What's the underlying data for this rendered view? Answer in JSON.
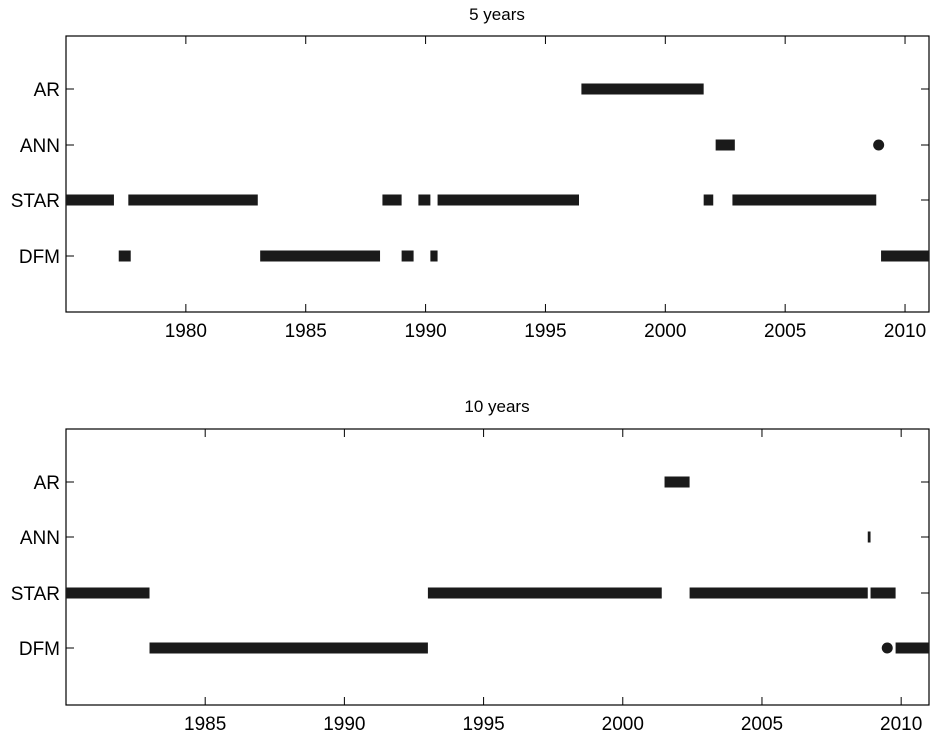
{
  "chart_data": [
    {
      "type": "scatter",
      "title": "5 years",
      "xlabel": "",
      "ylabel": "",
      "xlim": [
        1975,
        2011
      ],
      "categories": [
        "AR",
        "ANN",
        "STAR",
        "DFM"
      ],
      "xticks": [
        "1980",
        "1985",
        "1990",
        "1995",
        "2000",
        "2005",
        "2010"
      ],
      "grid": false,
      "series": [
        {
          "category": "AR",
          "segments": [
            [
              1996.5,
              2001.6
            ]
          ]
        },
        {
          "category": "ANN",
          "segments": [
            [
              2002.1,
              2002.9
            ],
            [
              2008.9,
              2008.9
            ]
          ]
        },
        {
          "category": "STAR",
          "segments": [
            [
              1975.0,
              1977.0
            ],
            [
              1977.6,
              1983.0
            ],
            [
              1988.2,
              1989.0
            ],
            [
              1989.7,
              1990.2
            ],
            [
              1990.5,
              1996.4
            ],
            [
              2001.6,
              2002.0
            ],
            [
              2002.8,
              2008.8
            ]
          ]
        },
        {
          "category": "DFM",
          "segments": [
            [
              1977.2,
              1977.7
            ],
            [
              1983.1,
              1988.1
            ],
            [
              1989.0,
              1989.5
            ],
            [
              1990.2,
              1990.5
            ],
            [
              2009.0,
              2011.0
            ]
          ]
        }
      ]
    },
    {
      "type": "scatter",
      "title": "10 years",
      "xlabel": "",
      "ylabel": "",
      "xlim": [
        1980,
        2011
      ],
      "categories": [
        "AR",
        "ANN",
        "STAR",
        "DFM"
      ],
      "xticks": [
        "1985",
        "1990",
        "1995",
        "2000",
        "2005",
        "2010"
      ],
      "grid": false,
      "series": [
        {
          "category": "AR",
          "segments": [
            [
              2001.5,
              2002.4
            ]
          ]
        },
        {
          "category": "ANN",
          "segments": [
            [
              2008.8,
              2008.9
            ]
          ]
        },
        {
          "category": "STAR",
          "segments": [
            [
              1980.0,
              1983.0
            ],
            [
              1993.0,
              2001.4
            ],
            [
              2002.4,
              2008.8
            ],
            [
              2008.9,
              2009.8
            ]
          ]
        },
        {
          "category": "DFM",
          "segments": [
            [
              1983.0,
              1993.0
            ],
            [
              2009.5,
              2009.5
            ],
            [
              2009.8,
              2011.0
            ]
          ]
        }
      ]
    }
  ]
}
